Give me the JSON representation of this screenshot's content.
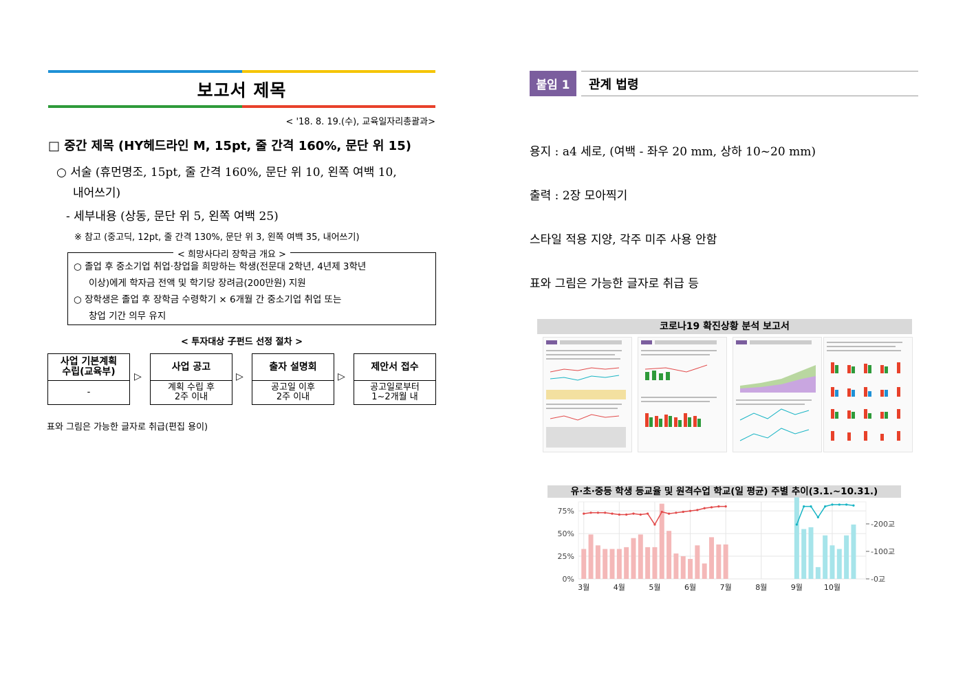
{
  "left": {
    "title": "보고서 제목",
    "date_line": "< '18. 8. 19.(수), 교육일자리총괄과>",
    "heading": "□ 중간 제목 (HY헤드라인 M, 15pt, 줄 간격 160%, 문단 위 15)",
    "para1_a": "○ 서술 (휴먼명조, 15pt, 줄 간격 160%, 문단 위 10, 왼쪽 여백 10,",
    "para1_b": "내어쓰기)",
    "para2": "- 세부내용 (상동, 문단 위 5, 왼쪽 여백 25)",
    "para3": "※ 참고 (중고딕, 12pt, 줄 간격 130%, 문단 위 3, 왼쪽 여백 35, 내어쓰기)",
    "box": {
      "title": "< 희망사다리 장학금 개요 >",
      "line1": "○ 졸업 후 중소기업 취업·창업을 희망하는 학생(전문대 2학년, 4년제 3학년",
      "line2": "이상)에게 학자금 전액 및 학기당 장려금(200만원) 지원",
      "line3": "○ 장학생은 졸업 후 장학금 수령학기 × 6개월 간 중소기업 취업 또는",
      "line4": "창업 기간 의무 유지"
    },
    "process": {
      "title": "< 투자대상 子펀드 선정 절차 >",
      "steps": [
        {
          "head": "사업 기본계획\n수립(교육부)",
          "body": "-"
        },
        {
          "head": "사업 공고",
          "body": "계획 수립 후\n2주 이내"
        },
        {
          "head": "출자 설명회",
          "body": "공고일 이후\n2주 이내"
        },
        {
          "head": "제안서 접수",
          "body": "공고일로부터\n1~2개월 내"
        }
      ],
      "arrow": "▷"
    },
    "note": "표와 그림은 가능한 글자로 취급(편집 용이)"
  },
  "right": {
    "tag": "붙임 1",
    "tag_title": "관계 법령",
    "lines": [
      "용지 : a4 세로, (여백 - 좌우 20 mm, 상하 10~20 mm)",
      "출력 : 2장 모아찍기",
      "스타일 적용 지양, 각주 미주 사용 안함",
      "표와 그림은 가능한 글자로 취급 등"
    ],
    "report_image_title": "코로나19 확진상황 분석 보고서"
  },
  "colors": {
    "blue": "#1e90d6",
    "yellow": "#f5c400",
    "green": "#2e9a3a",
    "red": "#e8412a",
    "tag": "#7b5e9e",
    "bar_red": "#f4b8b8",
    "bar_cyan": "#a6e4ea",
    "line_red": "#e24a4a",
    "line_cyan": "#17b4c4"
  },
  "chart_data": {
    "type": "bar",
    "title": "유·초·중등 학생 등교율 및 원격수업 학교(일 평균) 주별 추이(3.1.~10.31.)",
    "x_ticks": [
      "3월",
      "4월",
      "5월",
      "6월",
      "7월",
      "8월",
      "9월",
      "10월"
    ],
    "y_left_ticks": [
      "0%",
      "25%",
      "50%",
      "75%"
    ],
    "y_right_ticks": [
      "0교",
      "100교",
      "200교"
    ],
    "y_left_range": [
      0,
      0.85
    ],
    "y_right_range": [
      0,
      280
    ],
    "grid": true,
    "series": [
      {
        "values_x": [
          3.0,
          3.2,
          3.4,
          3.6,
          3.8,
          4.0,
          4.2,
          4.4,
          4.6,
          4.8,
          5.0,
          5.2,
          5.4,
          5.6,
          5.8,
          6.0,
          6.2,
          6.4,
          6.6,
          6.8,
          7.0
        ],
        "values": [
          0.33,
          0.49,
          0.37,
          0.33,
          0.33,
          0.33,
          0.35,
          0.45,
          0.49,
          0.35,
          0.35,
          0.83,
          0.53,
          0.28,
          0.25,
          0.22,
          0.37,
          0.17,
          0.46,
          0.38,
          0.38
        ],
        "kind": "bar"
      },
      {
        "values_x": [
          9.0,
          9.2,
          9.4,
          9.6,
          9.8,
          10.0,
          10.2,
          10.4,
          10.6
        ],
        "values": [
          0.9,
          0.55,
          0.57,
          0.13,
          0.48,
          0.37,
          0.33,
          0.48,
          0.6
        ],
        "kind": "bar"
      },
      {
        "values_x": [
          3.0,
          3.2,
          3.4,
          3.6,
          3.8,
          4.0,
          4.2,
          4.4,
          4.6,
          4.8,
          5.0,
          5.2,
          5.4,
          5.6,
          5.8,
          6.0,
          6.2,
          6.4,
          6.6,
          6.8,
          7.0
        ],
        "values": [
          0.72,
          0.73,
          0.73,
          0.73,
          0.72,
          0.71,
          0.71,
          0.72,
          0.71,
          0.72,
          0.6,
          0.74,
          0.72,
          0.73,
          0.74,
          0.75,
          0.76,
          0.78,
          0.79,
          0.8,
          0.8
        ],
        "kind": "line"
      },
      {
        "values_x": [
          9.0,
          9.2,
          9.4,
          9.6,
          9.8,
          10.0,
          10.2,
          10.4,
          10.6
        ],
        "values": [
          0.6,
          0.8,
          0.8,
          0.68,
          0.8,
          0.82,
          0.82,
          0.82,
          0.81
        ],
        "kind": "line"
      }
    ]
  }
}
